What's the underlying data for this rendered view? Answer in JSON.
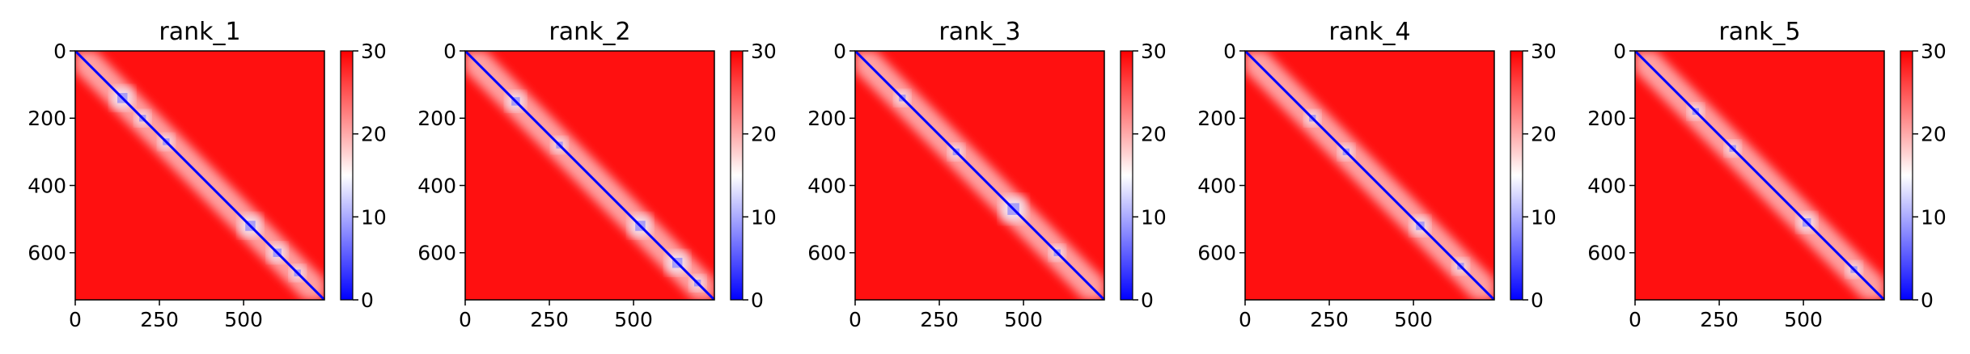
{
  "chart_data": [
    {
      "type": "heatmap",
      "title": "rank_1",
      "xlabel": "",
      "ylabel": "",
      "xticks": [
        "0",
        "250",
        "500"
      ],
      "yticks": [
        "0",
        "200",
        "400",
        "600"
      ],
      "xlim": [
        0,
        740
      ],
      "ylim": [
        740,
        0
      ],
      "colorbar": {
        "min": 0,
        "max": 30,
        "ticks": [
          "0",
          "10",
          "20",
          "30"
        ],
        "colors": [
          "#0000ff",
          "#ffffff",
          "#ff0000"
        ]
      },
      "low_regions": [
        {
          "x": 140,
          "y": 140,
          "s": 60
        },
        {
          "x": 200,
          "y": 200,
          "s": 40
        },
        {
          "x": 270,
          "y": 270,
          "s": 40
        },
        {
          "x": 520,
          "y": 520,
          "s": 60
        },
        {
          "x": 600,
          "y": 600,
          "s": 50
        },
        {
          "x": 660,
          "y": 660,
          "s": 40
        }
      ]
    },
    {
      "type": "heatmap",
      "title": "rank_2",
      "xlabel": "",
      "ylabel": "",
      "xticks": [
        "0",
        "250",
        "500"
      ],
      "yticks": [
        "0",
        "200",
        "400",
        "600"
      ],
      "xlim": [
        0,
        740
      ],
      "ylim": [
        740,
        0
      ],
      "colorbar": {
        "min": 0,
        "max": 30,
        "ticks": [
          "0",
          "10",
          "20",
          "30"
        ],
        "colors": [
          "#0000ff",
          "#ffffff",
          "#ff0000"
        ]
      },
      "low_regions": [
        {
          "x": 150,
          "y": 150,
          "s": 50
        },
        {
          "x": 280,
          "y": 280,
          "s": 40
        },
        {
          "x": 520,
          "y": 520,
          "s": 60
        },
        {
          "x": 630,
          "y": 630,
          "s": 60
        },
        {
          "x": 690,
          "y": 690,
          "s": 40
        }
      ]
    },
    {
      "type": "heatmap",
      "title": "rank_3",
      "xlabel": "",
      "ylabel": "",
      "xticks": [
        "0",
        "250",
        "500"
      ],
      "yticks": [
        "0",
        "200",
        "400",
        "600"
      ],
      "xlim": [
        0,
        740
      ],
      "ylim": [
        740,
        0
      ],
      "colorbar": {
        "min": 0,
        "max": 30,
        "ticks": [
          "0",
          "10",
          "20",
          "30"
        ],
        "colors": [
          "#0000ff",
          "#ffffff",
          "#ff0000"
        ]
      },
      "low_regions": [
        {
          "x": 140,
          "y": 140,
          "s": 40
        },
        {
          "x": 300,
          "y": 300,
          "s": 40
        },
        {
          "x": 470,
          "y": 470,
          "s": 70
        },
        {
          "x": 600,
          "y": 600,
          "s": 40
        }
      ]
    },
    {
      "type": "heatmap",
      "title": "rank_4",
      "xlabel": "",
      "ylabel": "",
      "xticks": [
        "0",
        "250",
        "500"
      ],
      "yticks": [
        "0",
        "200",
        "400",
        "600"
      ],
      "xlim": [
        0,
        740
      ],
      "ylim": [
        740,
        0
      ],
      "colorbar": {
        "min": 0,
        "max": 30,
        "ticks": [
          "0",
          "10",
          "20",
          "30"
        ],
        "colors": [
          "#0000ff",
          "#ffffff",
          "#ff0000"
        ]
      },
      "low_regions": [
        {
          "x": 200,
          "y": 200,
          "s": 40
        },
        {
          "x": 300,
          "y": 300,
          "s": 40
        },
        {
          "x": 520,
          "y": 520,
          "s": 50
        },
        {
          "x": 640,
          "y": 640,
          "s": 40
        }
      ]
    },
    {
      "type": "heatmap",
      "title": "rank_5",
      "xlabel": "",
      "ylabel": "",
      "xticks": [
        "0",
        "250",
        "500"
      ],
      "yticks": [
        "0",
        "200",
        "400",
        "600"
      ],
      "xlim": [
        0,
        740
      ],
      "ylim": [
        740,
        0
      ],
      "colorbar": {
        "min": 0,
        "max": 30,
        "ticks": [
          "0",
          "10",
          "20",
          "30"
        ],
        "colors": [
          "#0000ff",
          "#ffffff",
          "#ff0000"
        ]
      },
      "low_regions": [
        {
          "x": 180,
          "y": 180,
          "s": 40
        },
        {
          "x": 290,
          "y": 290,
          "s": 40
        },
        {
          "x": 510,
          "y": 510,
          "s": 50
        },
        {
          "x": 650,
          "y": 650,
          "s": 40
        }
      ]
    }
  ]
}
